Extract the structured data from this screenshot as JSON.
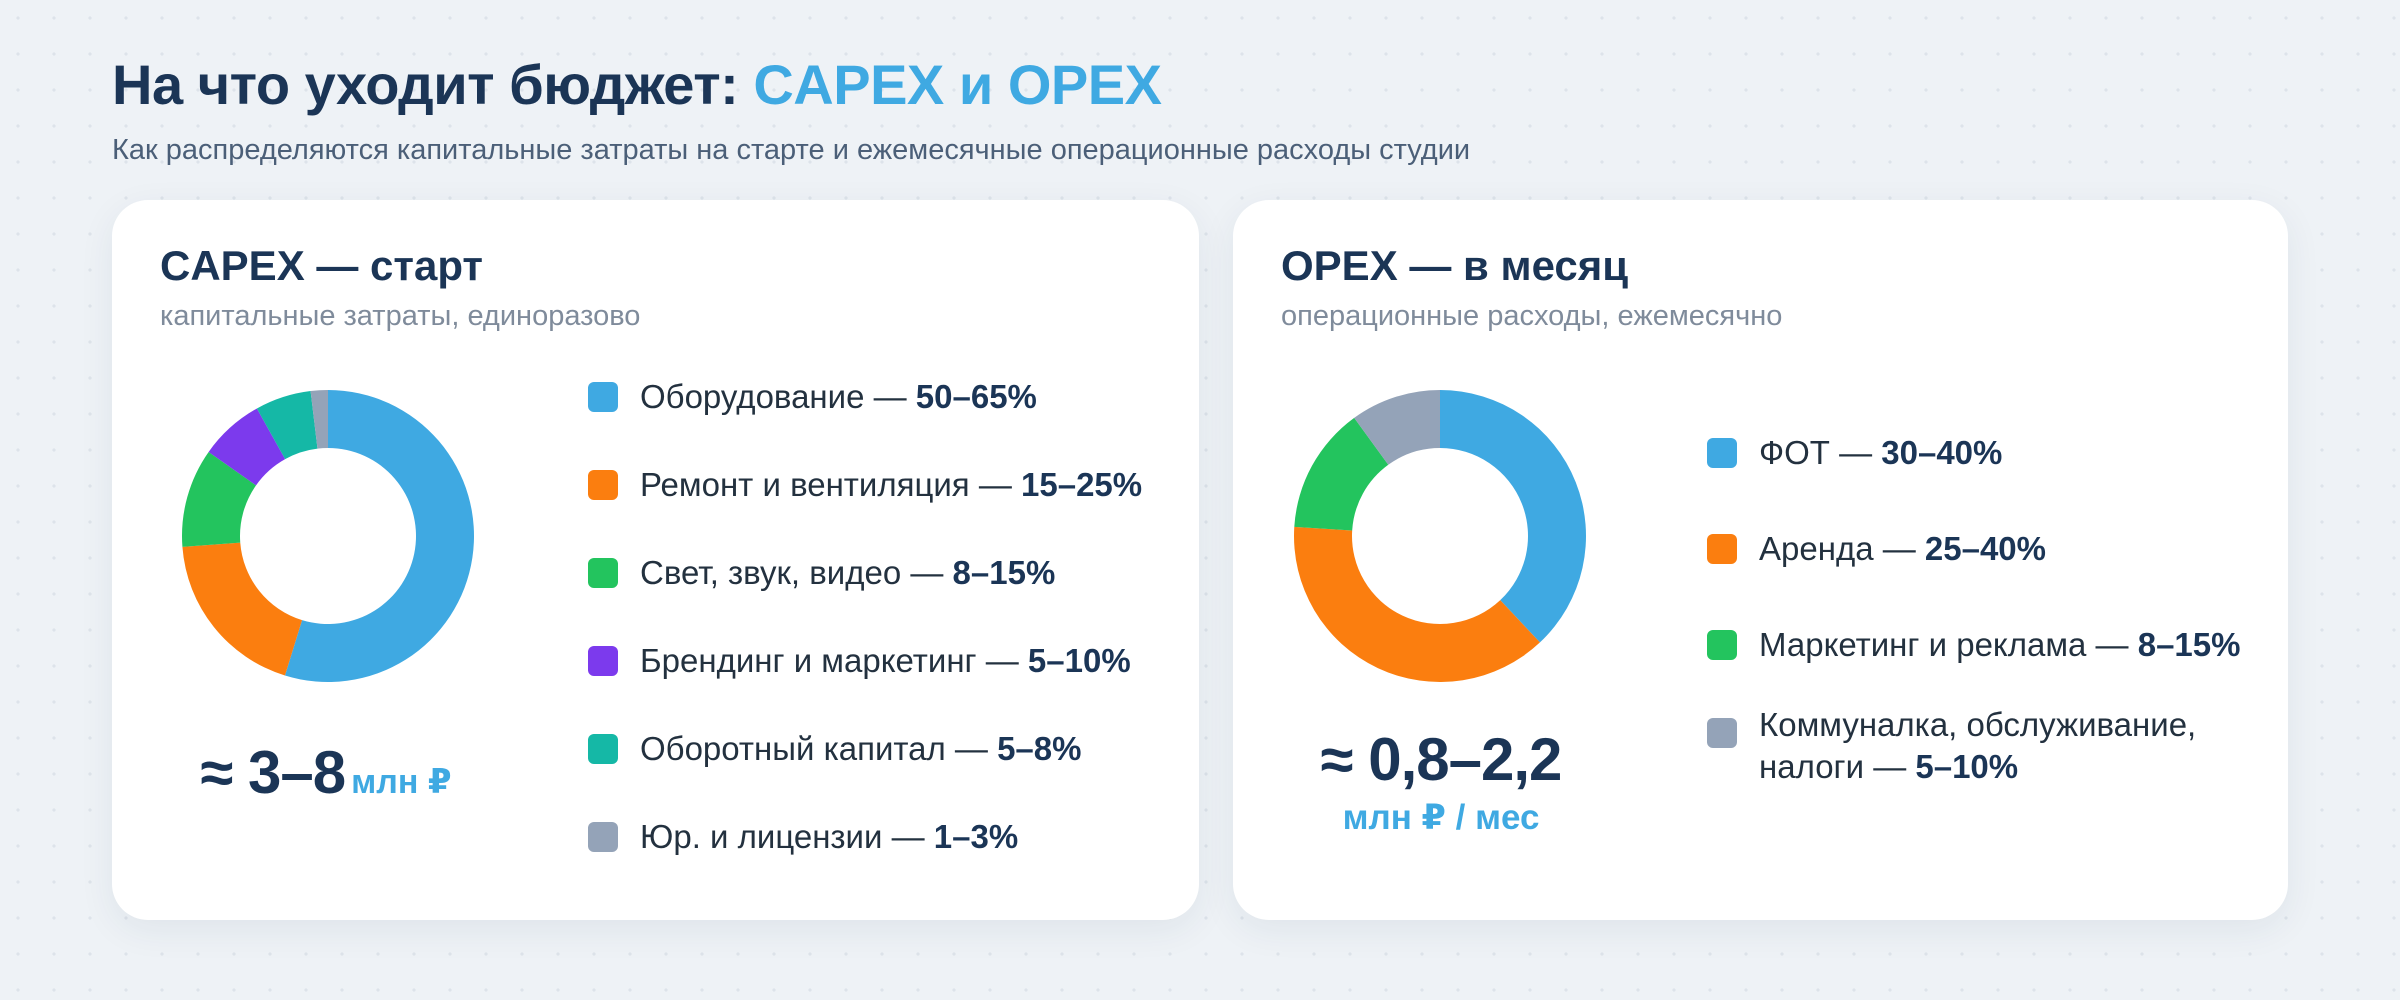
{
  "header": {
    "title_main": "На что уходит бюджет: ",
    "title_accent": "CAPEX и OPEX",
    "subtitle": "Как распределяются капитальные затраты на старте и ежемесячные операционные расходы студии"
  },
  "capex": {
    "title": "CAPEX — старт",
    "subtitle": "капитальные затраты, единоразово",
    "total_value": "≈ 3–8",
    "total_unit": "млн ₽",
    "items": [
      {
        "label": "Оборудование — ",
        "value": "50–65%"
      },
      {
        "label": "Ремонт и вентиляция — ",
        "value": "15–25%"
      },
      {
        "label": "Свет, звук, видео — ",
        "value": "8–15%"
      },
      {
        "label": "Брендинг и маркетинг — ",
        "value": "5–10%"
      },
      {
        "label": "Оборотный капитал — ",
        "value": "5–8%"
      },
      {
        "label": "Юр. и лицензии — ",
        "value": "1–3%"
      }
    ]
  },
  "opex": {
    "title": "OPEX — в месяц",
    "subtitle": "операционные расходы, ежемесячно",
    "total_value": "≈ 0,8–2,2",
    "total_unit": "млн ₽ / мес",
    "items": [
      {
        "label": "ФОТ — ",
        "value": "30–40%"
      },
      {
        "label": "Аренда — ",
        "value": "25–40%"
      },
      {
        "label": "Маркетинг и реклама — ",
        "value": "8–15%"
      },
      {
        "label": "Коммуналка, обслуживание, налоги — ",
        "value": "5–10%"
      }
    ]
  },
  "chart_data": [
    {
      "type": "pie",
      "categories": [
        "Оборудование",
        "Ремонт и вентиляция",
        "Свет, звук, видео",
        "Брендинг и маркетинг",
        "Оборотный капитал",
        "Юр. и лицензии"
      ],
      "values": [
        57.5,
        20,
        11.5,
        7.5,
        6.5,
        2
      ],
      "colors": [
        "#3fa9e2",
        "#fb7e0f",
        "#23c45e",
        "#7c3aed",
        "#15b8a6",
        "#94a3b8"
      ],
      "donut": true
    },
    {
      "type": "pie",
      "categories": [
        "ФОТ",
        "Аренда",
        "Маркетинг и реклама",
        "Коммуналка, обслуживание, налоги"
      ],
      "values": [
        38,
        38,
        14,
        10
      ],
      "colors": [
        "#3fa9e2",
        "#fb7e0f",
        "#23c45e",
        "#94a3b8"
      ],
      "donut": true
    }
  ]
}
